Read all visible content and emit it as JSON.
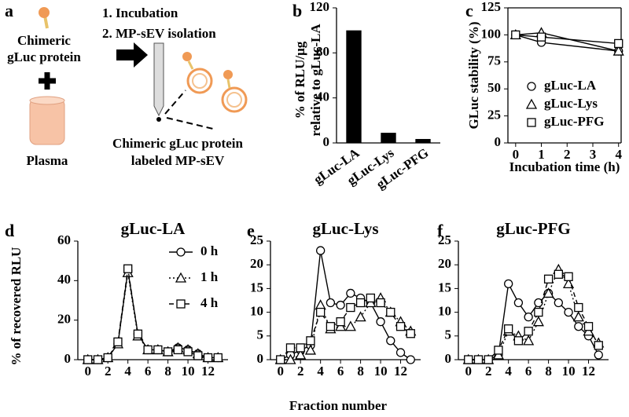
{
  "panel_labels": [
    "a",
    "b",
    "c",
    "d",
    "e",
    "f"
  ],
  "schematic": {
    "protein": [
      "Chimeric",
      "gLuc protein"
    ],
    "plasma": "Plasma",
    "steps": [
      "1. Incubation",
      "2. MP-sEV isolation"
    ],
    "product": [
      "Chimeric gLuc protein",
      "labeled MP-sEV"
    ]
  },
  "shared_y_label": "% of recovered RLU",
  "shared_x_label": "Fraction number",
  "chart_data": [
    {
      "type": "bar",
      "categories": [
        "gLuc-LA",
        "gLuc-Lys",
        "gLuc-PFG"
      ],
      "values": [
        100,
        9,
        3.5
      ],
      "color": "#000000",
      "ylim": [
        0,
        120
      ],
      "yticks": [
        0,
        40,
        80,
        120
      ],
      "y_label": [
        "% of RLU/μg",
        "relative to gLuc-LA"
      ]
    },
    {
      "type": "line",
      "x": [
        0,
        1,
        4
      ],
      "xlim": [
        -0.3,
        4.1
      ],
      "xticks": [
        0,
        1,
        2,
        3,
        4
      ],
      "ylim": [
        0,
        125
      ],
      "yticks": [
        0,
        25,
        50,
        75,
        100,
        125
      ],
      "x_label": "Incubation time (h)",
      "y_label": "GLuc stability (%)",
      "legend": "lower right",
      "box": true,
      "series": [
        {
          "name": "gLuc-LA",
          "color": "#000000",
          "marker": "circle",
          "dash": "solid",
          "values": [
            100,
            93,
            85
          ]
        },
        {
          "name": "gLuc-Lys",
          "color": "#000000",
          "marker": "triangle",
          "dash": "solid",
          "values": [
            100,
            102,
            85
          ]
        },
        {
          "name": "gLuc-PFG",
          "color": "#000000",
          "marker": "square",
          "dash": "solid",
          "values": [
            100,
            98,
            92
          ]
        }
      ]
    },
    {
      "type": "line",
      "title": "gLuc-LA",
      "x": [
        0,
        1,
        2,
        3,
        4,
        5,
        6,
        7,
        8,
        9,
        10,
        11,
        12,
        13
      ],
      "xlim": [
        -1,
        14
      ],
      "xticks": [
        0,
        2,
        4,
        6,
        8,
        10,
        12
      ],
      "ylim": [
        0,
        60
      ],
      "yticks": [
        0,
        20,
        40,
        60
      ],
      "legend": "upper right",
      "series": [
        {
          "name": "0 h",
          "color": "#000000",
          "marker": "circle",
          "dash": "solid",
          "values": [
            0,
            0,
            1,
            8,
            45,
            13,
            5,
            5,
            4,
            6,
            5,
            3,
            1,
            1
          ]
        },
        {
          "name": "1 h",
          "color": "#000000",
          "marker": "triangle",
          "dash": "dotted",
          "values": [
            0,
            0,
            1,
            8,
            44,
            12,
            5,
            5,
            4,
            6,
            5,
            3,
            1,
            1
          ]
        },
        {
          "name": "4 h",
          "color": "#000000",
          "marker": "square",
          "dash": "dashed",
          "values": [
            0,
            0,
            1,
            9,
            46,
            13,
            5,
            5,
            4,
            5,
            4,
            2,
            1,
            1
          ]
        }
      ]
    },
    {
      "type": "line",
      "title": "gLuc-Lys",
      "x": [
        0,
        1,
        2,
        3,
        4,
        5,
        6,
        7,
        8,
        9,
        10,
        11,
        12,
        13
      ],
      "xlim": [
        -1,
        14
      ],
      "xticks": [
        0,
        2,
        4,
        6,
        8,
        10,
        12
      ],
      "ylim": [
        0,
        25
      ],
      "yticks": [
        0,
        5,
        10,
        15,
        20,
        25
      ],
      "series": [
        {
          "name": "0 h",
          "color": "#000000",
          "marker": "circle",
          "dash": "solid",
          "values": [
            0,
            1,
            2,
            3,
            23,
            12,
            11.5,
            14,
            13,
            12,
            8,
            4,
            1.5,
            0
          ]
        },
        {
          "name": "1 h",
          "color": "#000000",
          "marker": "triangle",
          "dash": "dotted",
          "values": [
            0,
            0,
            1,
            2,
            11.5,
            6.5,
            7,
            7,
            9,
            12,
            13,
            10,
            8,
            6
          ]
        },
        {
          "name": "4 h",
          "color": "#000000",
          "marker": "square",
          "dash": "dashed",
          "values": [
            0,
            2.5,
            2.5,
            4,
            10,
            7,
            8,
            11,
            12,
            13,
            12,
            10,
            7,
            5.5
          ]
        }
      ]
    },
    {
      "type": "line",
      "title": "gLuc-PFG",
      "x": [
        0,
        1,
        2,
        3,
        4,
        5,
        6,
        7,
        8,
        9,
        10,
        11,
        12,
        13
      ],
      "xlim": [
        -1,
        14
      ],
      "xticks": [
        0,
        2,
        4,
        6,
        8,
        10,
        12
      ],
      "ylim": [
        0,
        25
      ],
      "yticks": [
        0,
        5,
        10,
        15,
        20,
        25
      ],
      "series": [
        {
          "name": "0 h",
          "color": "#000000",
          "marker": "circle",
          "dash": "solid",
          "values": [
            0,
            0,
            0,
            1,
            16,
            12,
            9,
            12,
            14,
            12,
            10,
            7,
            5,
            1
          ]
        },
        {
          "name": "1 h",
          "color": "#000000",
          "marker": "triangle",
          "dash": "dotted",
          "values": [
            0,
            0,
            0,
            1,
            6,
            5,
            4,
            8,
            14,
            19,
            16,
            9,
            6,
            3.5
          ]
        },
        {
          "name": "4 h",
          "color": "#000000",
          "marker": "square",
          "dash": "dashed",
          "values": [
            0,
            0,
            0,
            2,
            6.5,
            4,
            6,
            10,
            17,
            18,
            17.5,
            11,
            7,
            3
          ]
        }
      ]
    }
  ]
}
